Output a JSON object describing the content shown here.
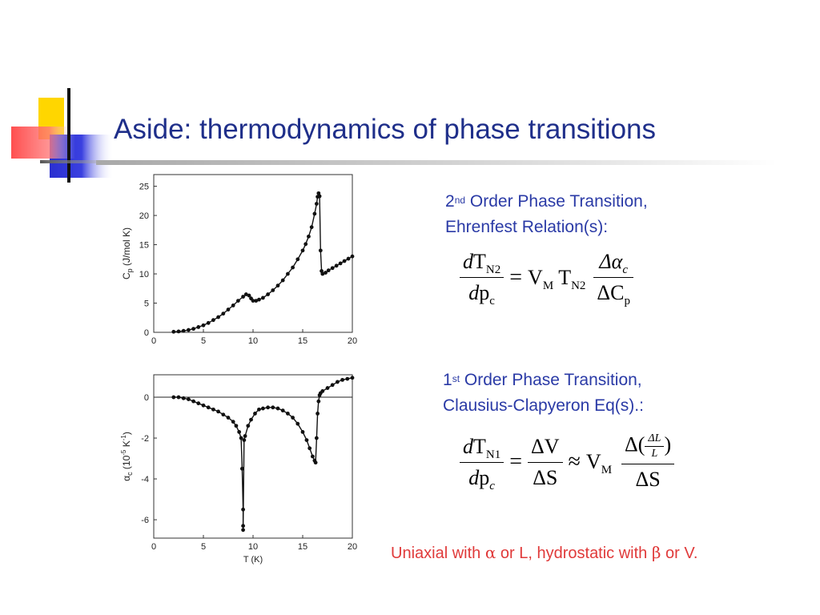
{
  "slide": {
    "title": "Aside: thermodynamics of phase transitions",
    "second_order_heading_num": "2",
    "second_order_heading_sup": "nd",
    "second_order_heading_rest": " Order Phase Transition,",
    "second_order_heading_line2": "Ehrenfest Relation(s):",
    "first_order_heading_num": "1",
    "first_order_heading_sup": "st",
    "first_order_heading_rest": " Order Phase Transition,",
    "first_order_heading_line2": "Clausius-Clapyeron Eq(s).:",
    "note_prefix": "Uniaxial with ",
    "note_alpha": "α",
    "note_mid": " or L, hydrostatic with ",
    "note_beta": "β",
    "note_suffix": " or V."
  },
  "equations": {
    "ehrenfest": {
      "lhs_num_d": "d",
      "lhs_num_T": "T",
      "lhs_num_sub": "N2",
      "lhs_den_d": "d",
      "lhs_den_p": "p",
      "lhs_den_sub": "c",
      "eq": "=",
      "V": "V",
      "V_sub": "M",
      "T": "T",
      "T_sub": "N2",
      "rhs_num": "Δα",
      "rhs_num_sub": "c",
      "rhs_den": "ΔC",
      "rhs_den_sub": "p"
    },
    "clausius": {
      "lhs_num_d": "d",
      "lhs_num_T": "T",
      "lhs_num_sub": "N1",
      "lhs_den_d": "d",
      "lhs_den_p": "p",
      "lhs_den_sub": "c",
      "eq": "=",
      "mid_num": "ΔV",
      "mid_den": "ΔS",
      "approx": "≈",
      "V": "V",
      "V_sub": "M",
      "rhs_num_open": "Δ(",
      "rhs_inner_num": "ΔL",
      "rhs_inner_den": "L",
      "rhs_num_close": ")",
      "rhs_den": "ΔS"
    }
  },
  "chart_data": [
    {
      "type": "scatter",
      "title": "",
      "xlabel": "",
      "ylabel_main": "C",
      "ylabel_sub": "p",
      "ylabel_rest": " (J/mol K)",
      "xlim": [
        0,
        20
      ],
      "ylim": [
        0,
        27
      ],
      "x_ticks": [
        "0",
        "5",
        "10",
        "15",
        "20"
      ],
      "y_ticks": [
        "0",
        "5",
        "10",
        "15",
        "20",
        "25"
      ],
      "y_tick_values": [
        0,
        5,
        10,
        15,
        20,
        25
      ],
      "x_tick_values": [
        0,
        5,
        10,
        15,
        20
      ],
      "series": [
        {
          "x": [
            2.0,
            2.5,
            3.0,
            3.5,
            4.0,
            4.5,
            5.0,
            5.5,
            6.0,
            6.5,
            7.0,
            7.5,
            8.0,
            8.5,
            9.0,
            9.3,
            9.6,
            9.8,
            10.0,
            10.3,
            10.6,
            11.0,
            11.5,
            12.0,
            12.5,
            13.0,
            13.5,
            14.0,
            14.5,
            15.0,
            15.3,
            15.6,
            15.9,
            16.2,
            16.4,
            16.5,
            16.6,
            16.7,
            16.8,
            16.9,
            17.0,
            17.3,
            17.6,
            18.0,
            18.4,
            18.8,
            19.2,
            19.6,
            20.0
          ],
          "y": [
            0.1,
            0.15,
            0.25,
            0.4,
            0.6,
            0.9,
            1.2,
            1.6,
            2.1,
            2.6,
            3.2,
            3.9,
            4.6,
            5.4,
            6.1,
            6.5,
            6.3,
            5.8,
            5.4,
            5.4,
            5.6,
            5.9,
            6.5,
            7.2,
            8.0,
            8.9,
            10.0,
            11.1,
            12.5,
            14.0,
            15.1,
            16.4,
            18.0,
            20.3,
            22.0,
            23.2,
            23.8,
            23.3,
            14.0,
            10.5,
            10.0,
            10.2,
            10.6,
            11.0,
            11.4,
            11.8,
            12.2,
            12.6,
            13.0
          ]
        }
      ]
    },
    {
      "type": "scatter",
      "title": "",
      "xlabel": "T (K)",
      "ylabel_main": "α",
      "ylabel_sub": "c",
      "ylabel_rest": " (10",
      "ylabel_exp": "-5",
      "ylabel_rest2": " K",
      "ylabel_exp2": "-1",
      "ylabel_end": ")",
      "xlim": [
        0,
        20
      ],
      "ylim": [
        -6.9,
        1.1
      ],
      "x_ticks": [
        "0",
        "5",
        "10",
        "15",
        "20"
      ],
      "y_ticks": [
        "0",
        "-2",
        "-4",
        "-6"
      ],
      "y_tick_values": [
        0,
        -2,
        -4,
        -6
      ],
      "x_tick_values": [
        0,
        5,
        10,
        15,
        20
      ],
      "series": [
        {
          "x": [
            2.0,
            2.5,
            3.0,
            3.5,
            4.0,
            4.5,
            5.0,
            5.5,
            6.0,
            6.5,
            7.0,
            7.5,
            8.0,
            8.3,
            8.6,
            8.8,
            8.9,
            9.0,
            9.0,
            9.0,
            9.1,
            9.2,
            9.5,
            9.8,
            10.2,
            10.6,
            11.0,
            11.5,
            12.0,
            12.5,
            13.0,
            13.5,
            14.0,
            14.5,
            15.0,
            15.4,
            15.7,
            16.0,
            16.2,
            16.3,
            16.4,
            16.5,
            16.6,
            16.7,
            16.8,
            17.0,
            17.5,
            18.0,
            18.5,
            19.0,
            19.5,
            20.0
          ],
          "y": [
            0.0,
            0.0,
            -0.05,
            -0.1,
            -0.2,
            -0.3,
            -0.4,
            -0.5,
            -0.6,
            -0.7,
            -0.85,
            -1.0,
            -1.2,
            -1.4,
            -1.7,
            -2.0,
            -3.5,
            -5.5,
            -6.3,
            -6.5,
            -2.1,
            -1.9,
            -1.4,
            -1.1,
            -0.8,
            -0.6,
            -0.55,
            -0.5,
            -0.5,
            -0.55,
            -0.65,
            -0.8,
            -1.0,
            -1.3,
            -1.7,
            -2.1,
            -2.5,
            -2.9,
            -3.1,
            -3.2,
            -2.0,
            -0.8,
            -0.2,
            0.1,
            0.2,
            0.3,
            0.45,
            0.6,
            0.75,
            0.85,
            0.9,
            0.95
          ]
        }
      ]
    }
  ]
}
